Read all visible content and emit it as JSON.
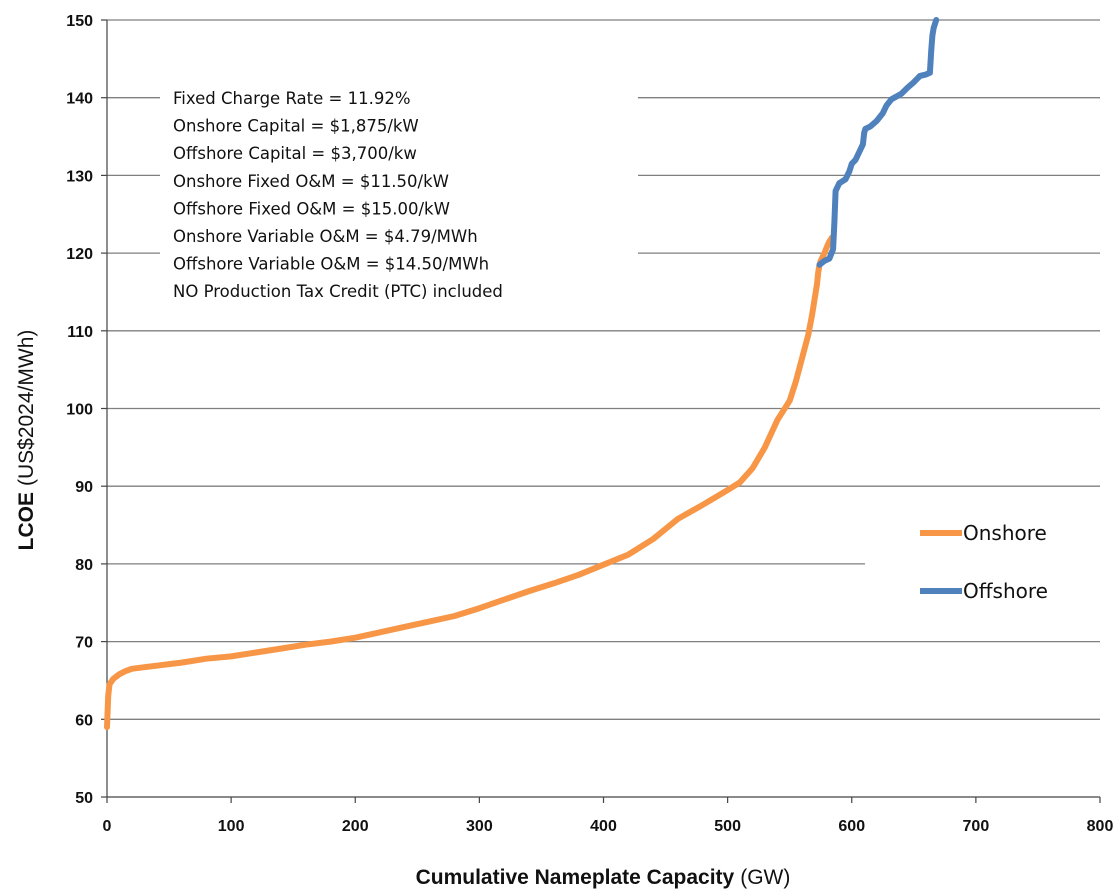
{
  "chart_data": {
    "type": "line",
    "xlabel_bold": "Cumulative Nameplate Capacity",
    "xlabel_unit": "(GW)",
    "ylabel_bold": "LCOE",
    "ylabel_unit": "(US$2024/MWh)",
    "xlim": [
      0,
      800
    ],
    "ylim": [
      50,
      150
    ],
    "x_ticks": [
      0,
      100,
      200,
      300,
      400,
      500,
      600,
      700,
      800
    ],
    "y_ticks": [
      50,
      60,
      70,
      80,
      90,
      100,
      110,
      120,
      130,
      140,
      150
    ],
    "grid": "horizontal",
    "legend_position": "right",
    "annotations": [
      "Fixed Charge Rate = 11.92%",
      "Onshore Capital = $1,875/kW",
      "Offshore Capital = $3,700/kw",
      "Onshore Fixed O&M = $11.50/kW",
      "Offshore Fixed O&M = $15.00/kW",
      "Onshore Variable O&M  = $4.79/MWh",
      "Offshore Variable O&M = $14.50/MWh",
      "NO Production Tax Credit (PTC) included"
    ],
    "series": [
      {
        "name": "Onshore",
        "color": "#F79646",
        "x": [
          0,
          0.5,
          1,
          2,
          5,
          10,
          15,
          20,
          30,
          40,
          50,
          60,
          80,
          100,
          120,
          140,
          160,
          180,
          200,
          220,
          240,
          260,
          280,
          300,
          320,
          340,
          360,
          380,
          400,
          420,
          440,
          460,
          480,
          500,
          510,
          520,
          530,
          540,
          550,
          555,
          560,
          565,
          568,
          570,
          572,
          573,
          574,
          575,
          578,
          580,
          582,
          584
        ],
        "y": [
          59,
          61,
          63,
          64.5,
          65.2,
          65.8,
          66.2,
          66.5,
          66.7,
          66.9,
          67.1,
          67.3,
          67.8,
          68.1,
          68.6,
          69.1,
          69.6,
          70.0,
          70.5,
          71.2,
          71.9,
          72.6,
          73.3,
          74.3,
          75.4,
          76.5,
          77.5,
          78.6,
          79.9,
          81.2,
          83.2,
          85.8,
          87.6,
          89.5,
          90.5,
          92.3,
          95.0,
          98.5,
          101.0,
          103.5,
          106.5,
          109.5,
          112.0,
          114.0,
          116.0,
          117.5,
          118.5,
          119.0,
          120.0,
          120.8,
          121.5,
          122.0
        ]
      },
      {
        "name": "Offshore",
        "color": "#4F81BD",
        "x": [
          574,
          578,
          582,
          585,
          586,
          587,
          590,
          595,
          598,
          600,
          603,
          606,
          609,
          610,
          611,
          615,
          620,
          625,
          628,
          632,
          640,
          645,
          650,
          655,
          660,
          663,
          664,
          665,
          666,
          668
        ],
        "y": [
          118.5,
          119.0,
          119.3,
          120.5,
          124.0,
          128.0,
          129.0,
          129.5,
          130.5,
          131.5,
          132.0,
          133.0,
          134.0,
          135.5,
          136.0,
          136.3,
          137.0,
          138.0,
          139.0,
          139.8,
          140.5,
          141.3,
          142.0,
          142.8,
          143.0,
          143.2,
          146.0,
          148.0,
          149.0,
          150.0
        ]
      }
    ]
  }
}
